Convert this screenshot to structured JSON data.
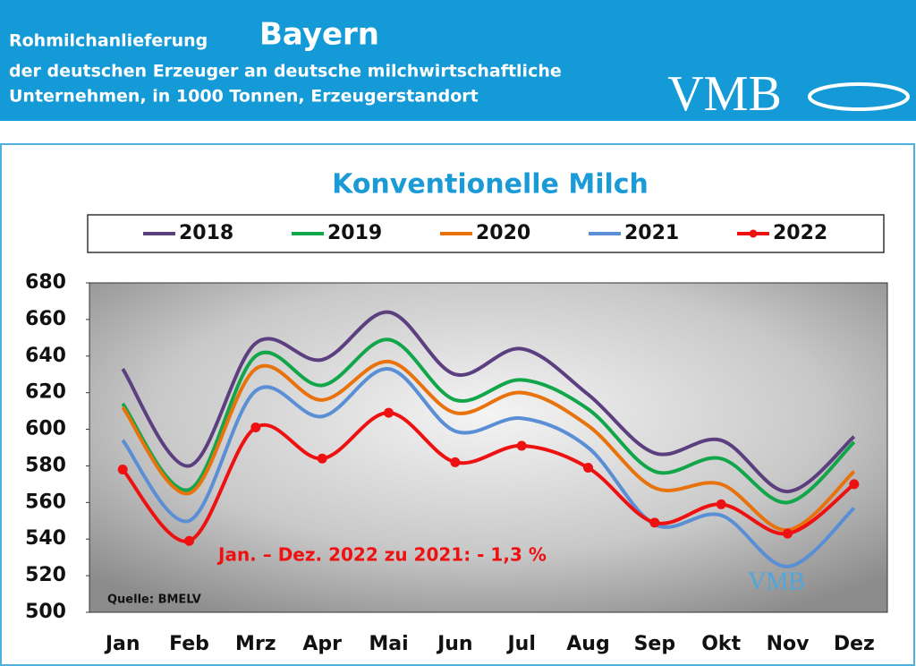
{
  "header": {
    "title_prefix": "Rohmilchanlieferung",
    "title_region": "Bayern",
    "subtitle_line1": "der deutschen Erzeuger an deutsche milchwirtschaftliche",
    "subtitle_line2": "Unternehmen, in 1000 Tonnen, Erzeugerstandort",
    "logo": "VMB"
  },
  "chart_data": {
    "type": "line",
    "title": "Konventionelle Milch",
    "categories": [
      "Jan",
      "Feb",
      "Mrz",
      "Apr",
      "Mai",
      "Jun",
      "Jul",
      "Aug",
      "Sep",
      "Okt",
      "Nov",
      "Dez"
    ],
    "series": [
      {
        "name": "2018",
        "color": "#5b3f7f",
        "values": [
          633,
          580,
          647,
          638,
          664,
          630,
          644,
          619,
          587,
          594,
          566,
          596
        ]
      },
      {
        "name": "2019",
        "color": "#12a64a",
        "values": [
          614,
          567,
          640,
          624,
          649,
          616,
          627,
          611,
          577,
          584,
          560,
          593
        ]
      },
      {
        "name": "2020",
        "color": "#e8720c",
        "values": [
          612,
          565,
          633,
          616,
          637,
          609,
          620,
          602,
          568,
          570,
          545,
          577
        ]
      },
      {
        "name": "2021",
        "color": "#5a8fd6",
        "values": [
          594,
          550,
          621,
          607,
          633,
          599,
          606,
          590,
          548,
          553,
          525,
          557
        ]
      },
      {
        "name": "2022",
        "color": "#ee1111",
        "markers": true,
        "values": [
          578,
          539,
          601,
          584,
          609,
          582,
          591,
          579,
          549,
          559,
          543,
          570
        ]
      }
    ],
    "ylim": [
      500,
      680
    ],
    "yticks": [
      500,
      520,
      540,
      560,
      580,
      600,
      620,
      640,
      660,
      680
    ],
    "grid": false,
    "annotation": "Jan. – Dez. 2022 zu 2021: - 1,3 %",
    "source": "Quelle: BMELV",
    "logo": "VMB"
  }
}
